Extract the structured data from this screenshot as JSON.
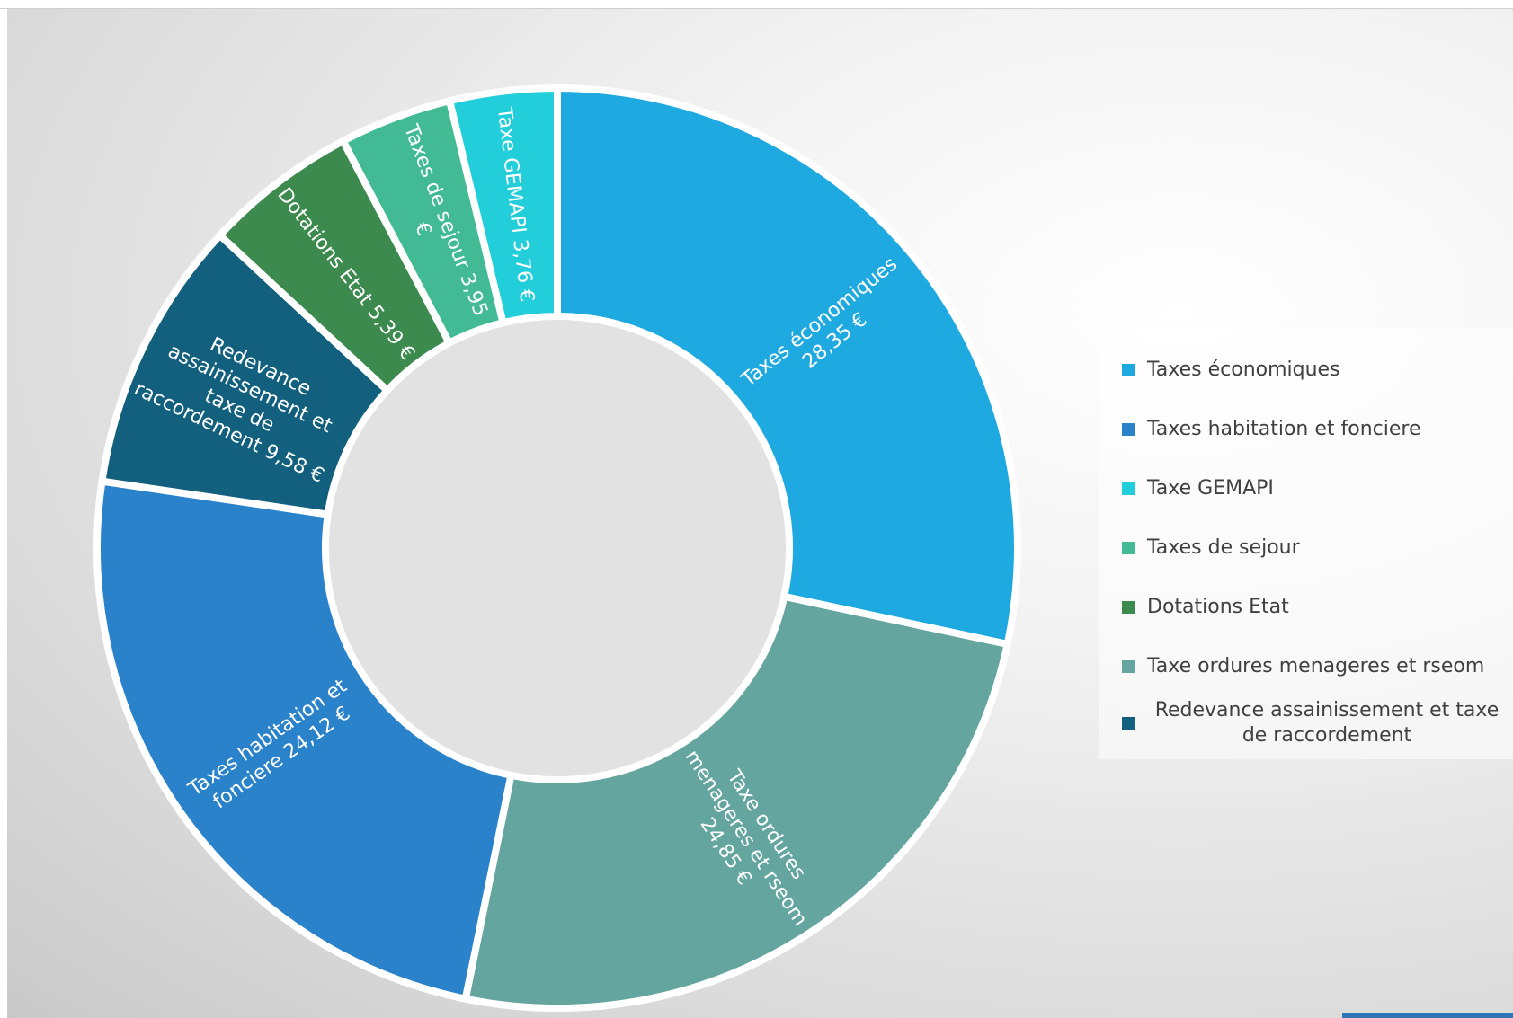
{
  "chart_data": {
    "type": "pie",
    "variant": "donut",
    "title": "",
    "legend_position": "right",
    "unit": "€",
    "slices": [
      {
        "name": "Taxes économiques",
        "value": 28.35,
        "label_lines": [
          "Taxes économiques",
          "28,35 €"
        ],
        "color": "#1FA9E1"
      },
      {
        "name": "Taxe ordures menageres et rseom",
        "value": 24.85,
        "label_lines": [
          "Taxe ordures",
          "menageres et rseom",
          "24,85 €"
        ],
        "color": "#64A5A0"
      },
      {
        "name": "Taxes habitation et fonciere",
        "value": 24.12,
        "label_lines": [
          "Taxes habitation et",
          "fonciere 24,12 €"
        ],
        "color": "#2A82CB"
      },
      {
        "name": "Redevance assainissement et taxe de raccordement",
        "value": 9.58,
        "label_lines": [
          "Redevance",
          "assainissement et",
          "taxe de",
          "raccordement 9,58 €"
        ],
        "color": "#125F7E"
      },
      {
        "name": "Dotations Etat",
        "value": 5.39,
        "label_lines": [
          "Dotations Etat 5,39 €"
        ],
        "color": "#3C8A4D"
      },
      {
        "name": "Taxes de sejour",
        "value": 3.95,
        "label_lines": [
          "Taxes de sejour 3,95",
          "€"
        ],
        "color": "#42BB95"
      },
      {
        "name": "Taxe GEMAPI",
        "value": 3.76,
        "label_lines": [
          "Taxe GEMAPI 3,76 €"
        ],
        "color": "#22CEDA"
      }
    ],
    "legend": [
      {
        "label": "Taxes économiques",
        "color": "#1FA9E1"
      },
      {
        "label": "Taxes habitation et fonciere",
        "color": "#2A82CB"
      },
      {
        "label": "Taxe GEMAPI",
        "color": "#22CEDA"
      },
      {
        "label": "Taxes de sejour",
        "color": "#42BB95"
      },
      {
        "label": "Dotations Etat",
        "color": "#3C8A4D"
      },
      {
        "label": "Taxe ordures menageres et rseom",
        "color": "#64A5A0"
      },
      {
        "label": "Redevance assainissement et taxe de raccordement",
        "color": "#125F7E"
      }
    ]
  }
}
